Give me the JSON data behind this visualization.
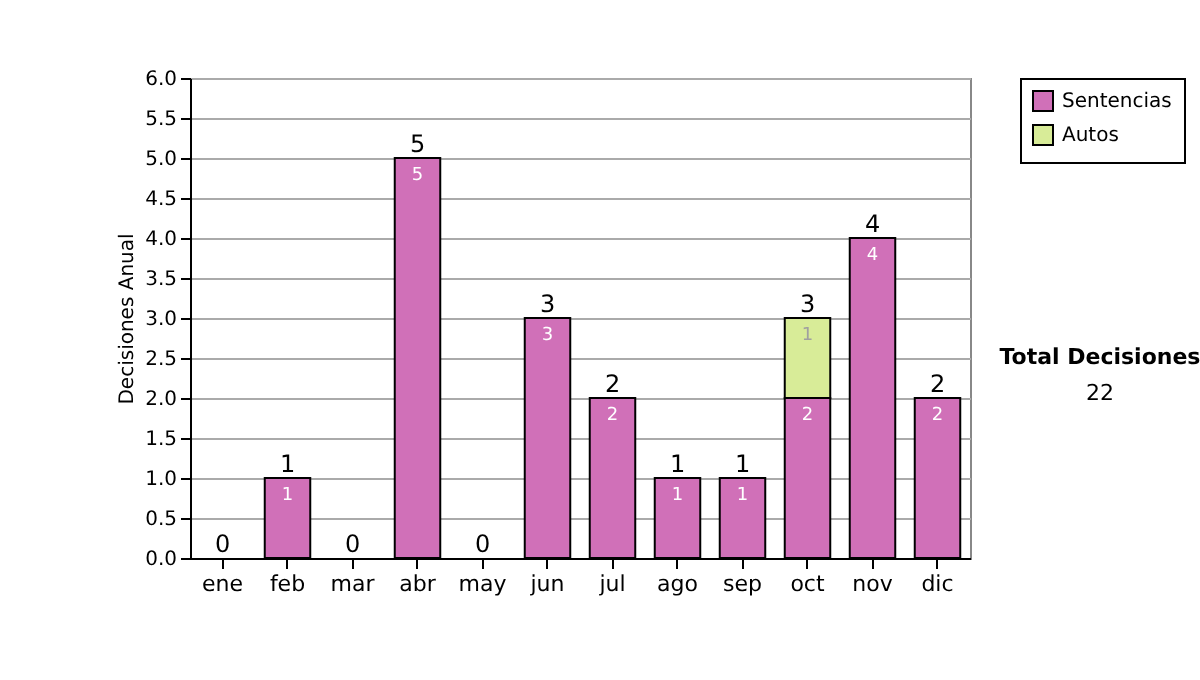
{
  "chart_data": {
    "type": "bar",
    "stacked": true,
    "ylabel": "Decisiones Anual",
    "categories": [
      "ene",
      "feb",
      "mar",
      "abr",
      "may",
      "jun",
      "jul",
      "ago",
      "sep",
      "oct",
      "nov",
      "dic"
    ],
    "series": [
      {
        "name": "Sentencias",
        "color": "#d070b8",
        "values": [
          0,
          1,
          0,
          5,
          0,
          3,
          2,
          1,
          1,
          2,
          4,
          2
        ],
        "value_labels": [
          null,
          "1",
          null,
          "5",
          null,
          "3",
          "2",
          "1",
          "1",
          "2",
          "4",
          "2"
        ]
      },
      {
        "name": "Autos",
        "color": "#d8ec98",
        "values": [
          0,
          0,
          0,
          0,
          0,
          0,
          0,
          0,
          0,
          1,
          0,
          0
        ],
        "value_labels": [
          null,
          null,
          null,
          null,
          null,
          null,
          null,
          null,
          null,
          "1",
          null,
          null
        ]
      }
    ],
    "totals": [
      "0",
      "1",
      "0",
      "5",
      "0",
      "3",
      "2",
      "1",
      "1",
      "3",
      "4",
      "2"
    ],
    "ylim": [
      0,
      6
    ],
    "yticks": [
      {
        "value": 0,
        "label": "0.0"
      },
      {
        "value": 0.5,
        "label": "0.5"
      },
      {
        "value": 1,
        "label": "1.0"
      },
      {
        "value": 1.5,
        "label": "1.5"
      },
      {
        "value": 2,
        "label": "2.0"
      },
      {
        "value": 2.5,
        "label": "2.5"
      },
      {
        "value": 3,
        "label": "3.0"
      },
      {
        "value": 3.5,
        "label": "3.5"
      },
      {
        "value": 4,
        "label": "4.0"
      },
      {
        "value": 4.5,
        "label": "4.5"
      },
      {
        "value": 5,
        "label": "5.0"
      },
      {
        "value": 5.5,
        "label": "5.5"
      },
      {
        "value": 6,
        "label": "6.0"
      }
    ],
    "grid": "y",
    "legend": "right",
    "annotations": [
      "Total Decisiones",
      "22"
    ]
  }
}
